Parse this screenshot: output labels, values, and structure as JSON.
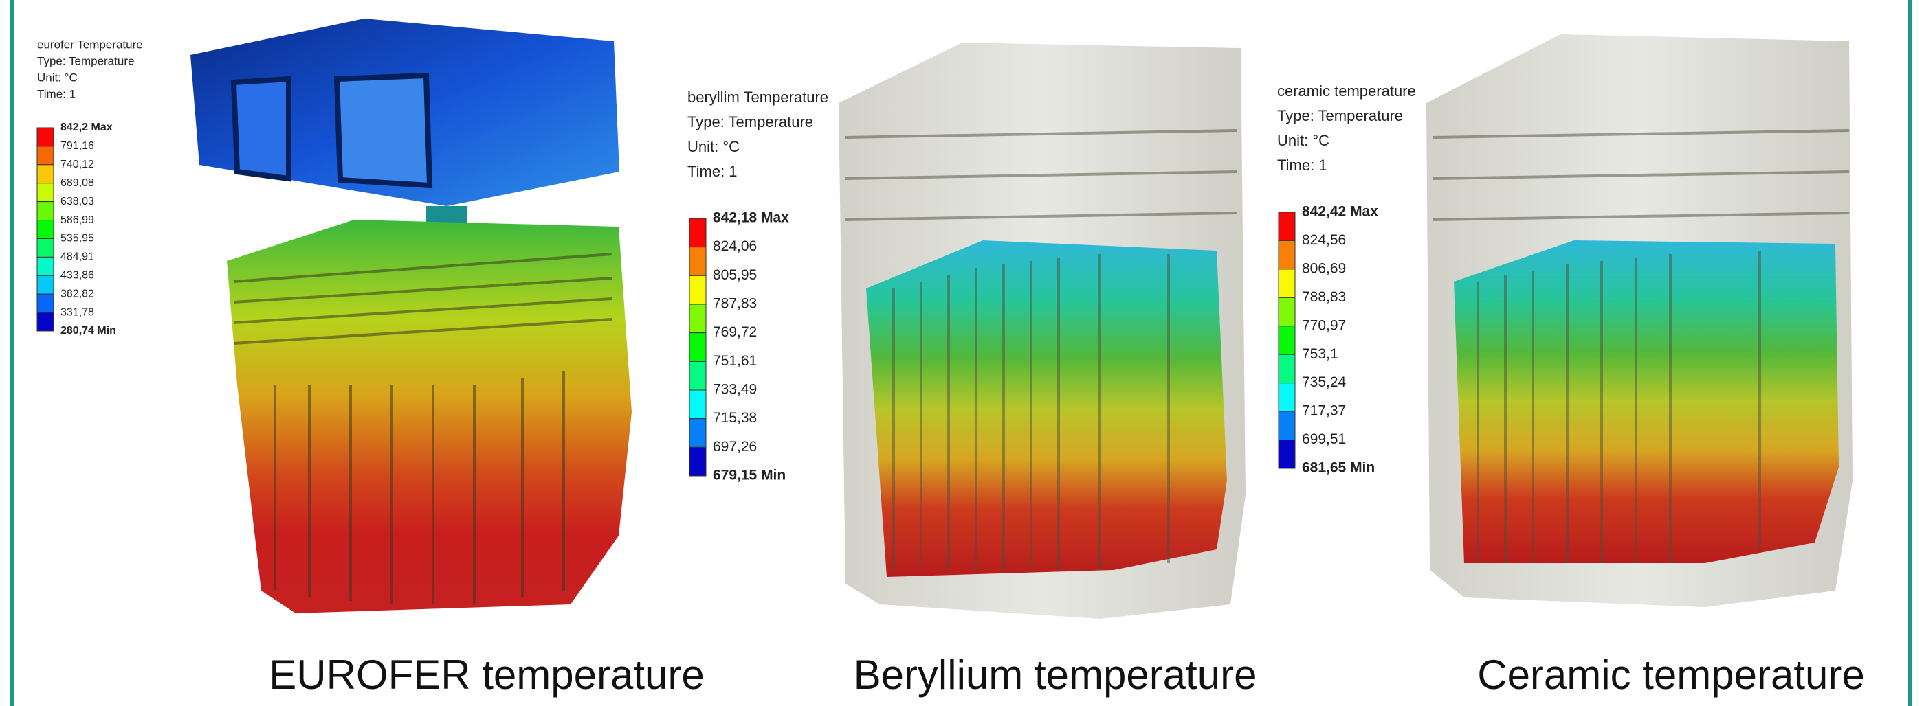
{
  "panels": [
    {
      "legend": {
        "lines": [
          "eurofer Temperature",
          "Type: Temperature",
          "Unit: °C",
          "Time: 1"
        ],
        "levels": [
          "842,2 Max",
          "791,16",
          "740,12",
          "689,08",
          "638,03",
          "586,99",
          "535,95",
          "484,91",
          "433,86",
          "382,82",
          "331,78",
          "280,74 Min"
        ]
      },
      "caption": "EUROFER temperature"
    },
    {
      "legend": {
        "lines": [
          "beryllim Temperature",
          "Type: Temperature",
          "Unit: °C",
          "Time: 1"
        ],
        "levels": [
          "842,18 Max",
          "824,06",
          "805,95",
          "787,83",
          "769,72",
          "751,61",
          "733,49",
          "715,38",
          "697,26",
          "679,15 Min"
        ]
      },
      "caption": "Beryllium temperature"
    },
    {
      "legend": {
        "lines": [
          "ceramic temperature",
          "Type: Temperature",
          "Unit: °C",
          "Time: 1"
        ],
        "levels": [
          "842,42 Max",
          "824,56",
          "806,69",
          "788,83",
          "770,97",
          "753,1",
          "735,24",
          "717,37",
          "699,51",
          "681,65 Min"
        ]
      },
      "caption": "Ceramic temperature"
    }
  ]
}
